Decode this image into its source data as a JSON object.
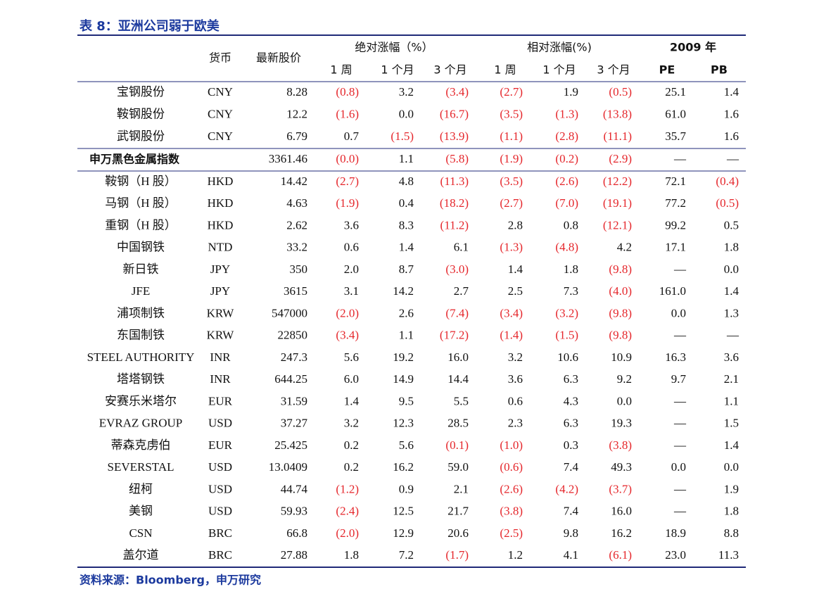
{
  "title": "表 8：亚洲公司弱于欧美",
  "header": {
    "currency": "货币",
    "price": "最新股价",
    "abs": "绝对涨幅（%）",
    "rel": "相对涨幅(%)",
    "year": "2009 年",
    "sub": [
      "1 周",
      "1 个月",
      "3 个月",
      "1 周",
      "1 个月",
      "3 个月",
      "PE",
      "PB"
    ]
  },
  "table": {
    "rows_a": [
      [
        "宝钢股份",
        "CNY",
        "8.28",
        "(0.8)",
        "3.2",
        "(3.4)",
        "(2.7)",
        "1.9",
        "(0.5)",
        "25.1",
        "1.4"
      ],
      [
        "鞍钢股份",
        "CNY",
        "12.2",
        "(1.6)",
        "0.0",
        "(16.7)",
        "(3.5)",
        "(1.3)",
        "(13.8)",
        "61.0",
        "1.6"
      ],
      [
        "武钢股份",
        "CNY",
        "6.79",
        "0.7",
        "(1.5)",
        "(13.9)",
        "(1.1)",
        "(2.8)",
        "(11.1)",
        "35.7",
        "1.6"
      ]
    ],
    "index_row": {
      "name": "申万黑色金属指数",
      "price": "3361.46",
      "values": [
        "(0.0)",
        "1.1",
        "(5.8)",
        "(1.9)",
        "(0.2)",
        "(2.9)",
        "—",
        "—"
      ]
    },
    "rows_b": [
      [
        "鞍钢（H 股）",
        "HKD",
        "14.42",
        "(2.7)",
        "4.8",
        "(11.3)",
        "(3.5)",
        "(2.6)",
        "(12.2)",
        "72.1",
        "(0.4)"
      ],
      [
        "马钢（H 股）",
        "HKD",
        "4.63",
        "(1.9)",
        "0.4",
        "(18.2)",
        "(2.7)",
        "(7.0)",
        "(19.1)",
        "77.2",
        "(0.5)"
      ],
      [
        "重钢（H 股）",
        "HKD",
        "2.62",
        "3.6",
        "8.3",
        "(11.2)",
        "2.8",
        "0.8",
        "(12.1)",
        "99.2",
        "0.5"
      ],
      [
        "中国钢铁",
        "NTD",
        "33.2",
        "0.6",
        "1.4",
        "6.1",
        "(1.3)",
        "(4.8)",
        "4.2",
        "17.1",
        "1.8"
      ],
      [
        "新日铁",
        "JPY",
        "350",
        "2.0",
        "8.7",
        "(3.0)",
        "1.4",
        "1.8",
        "(9.8)",
        "—",
        "0.0"
      ],
      [
        "JFE",
        "JPY",
        "3615",
        "3.1",
        "14.2",
        "2.7",
        "2.5",
        "7.3",
        "(4.0)",
        "161.0",
        "1.4"
      ],
      [
        "浦项制铁",
        "KRW",
        "547000",
        "(2.0)",
        "2.6",
        "(7.4)",
        "(3.4)",
        "(3.2)",
        "(9.8)",
        "0.0",
        "1.3"
      ],
      [
        "东国制铁",
        "KRW",
        "22850",
        "(3.4)",
        "1.1",
        "(17.2)",
        "(1.4)",
        "(1.5)",
        "(9.8)",
        "—",
        "—"
      ],
      [
        "STEEL AUTHORITY",
        "INR",
        "247.3",
        "5.6",
        "19.2",
        "16.0",
        "3.2",
        "10.6",
        "10.9",
        "16.3",
        "3.6"
      ],
      [
        "塔塔钢铁",
        "INR",
        "644.25",
        "6.0",
        "14.9",
        "14.4",
        "3.6",
        "6.3",
        "9.2",
        "9.7",
        "2.1"
      ],
      [
        "安赛乐米塔尔",
        "EUR",
        "31.59",
        "1.4",
        "9.5",
        "5.5",
        "0.6",
        "4.3",
        "0.0",
        "—",
        "1.1"
      ],
      [
        "EVRAZ GROUP",
        "USD",
        "37.27",
        "3.2",
        "12.3",
        "28.5",
        "2.3",
        "6.3",
        "19.3",
        "—",
        "1.5"
      ],
      [
        "蒂森克虏伯",
        "EUR",
        "25.425",
        "0.2",
        "5.6",
        "(0.1)",
        "(1.0)",
        "0.3",
        "(3.8)",
        "—",
        "1.4"
      ],
      [
        "SEVERSTAL",
        "USD",
        "13.0409",
        "0.2",
        "16.2",
        "59.0",
        "(0.6)",
        "7.4",
        "49.3",
        "0.0",
        "0.0"
      ],
      [
        "纽柯",
        "USD",
        "44.74",
        "(1.2)",
        "0.9",
        "2.1",
        "(2.6)",
        "(4.2)",
        "(3.7)",
        "—",
        "1.9"
      ],
      [
        "美钢",
        "USD",
        "59.93",
        "(2.4)",
        "12.5",
        "21.7",
        "(3.8)",
        "7.4",
        "16.0",
        "—",
        "1.8"
      ],
      [
        "CSN",
        "BRC",
        "66.8",
        "(2.0)",
        "12.9",
        "20.6",
        "(2.5)",
        "9.8",
        "16.2",
        "18.9",
        "8.8"
      ],
      [
        "盖尔道",
        "BRC",
        "27.88",
        "1.8",
        "7.2",
        "(1.7)",
        "1.2",
        "4.1",
        "(6.1)",
        "23.0",
        "11.3"
      ]
    ]
  },
  "source": "资料来源：Bloomberg，申万研究"
}
